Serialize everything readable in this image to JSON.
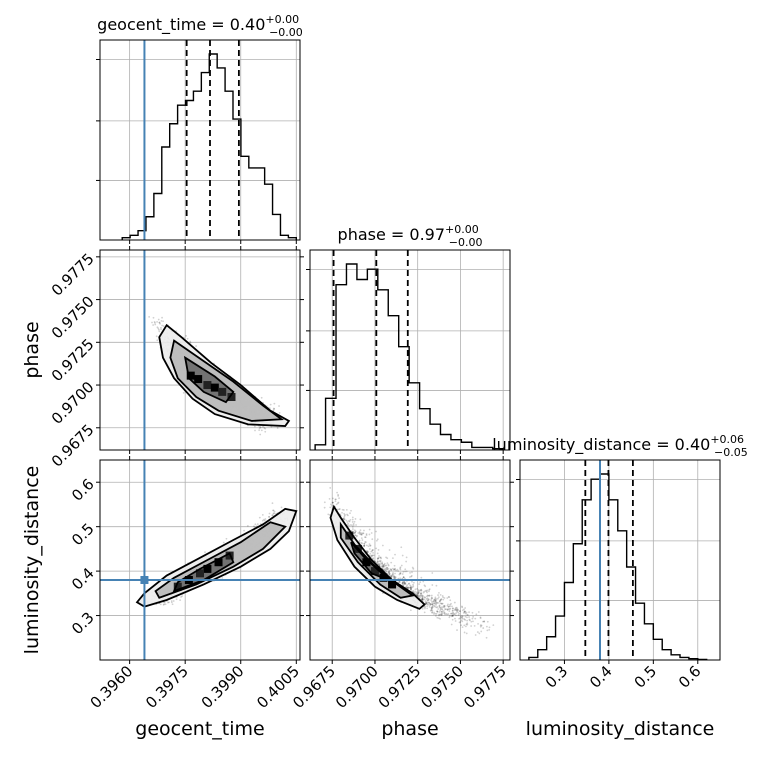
{
  "chart_data": {
    "type": "scatter",
    "subtype": "corner-plot",
    "truth_color": "#4682b4",
    "truth": {
      "geocent_time": 0.3964,
      "phase": null,
      "luminosity_distance": 0.38
    },
    "parameters": [
      {
        "name": "geocent_time",
        "label": "geocent_time",
        "title_name": "geocent_time",
        "title_value": "0.40",
        "title_plus": "+0.00",
        "title_minus": "−0.00",
        "range": [
          0.3952,
          0.4006
        ],
        "ticks": [
          0.396,
          0.3975,
          0.399,
          0.4005
        ],
        "tick_labels": [
          "0.3960",
          "0.3975",
          "0.3990",
          "0.4005"
        ],
        "quantiles": [
          0.39754,
          0.39817,
          0.39895
        ],
        "hist_edges_range": [
          0.3958,
          0.4005
        ],
        "hist_counts": [
          1,
          2,
          4,
          10,
          20,
          40,
          50,
          58,
          60,
          64,
          72,
          80,
          74,
          64,
          52,
          36,
          31,
          31,
          24,
          11,
          2,
          1
        ]
      },
      {
        "name": "phase",
        "label": "phase",
        "title_name": "phase",
        "title_value": "0.97",
        "title_plus": "+0.00",
        "title_minus": "−0.00",
        "range": [
          0.9662,
          0.9779
        ],
        "ticks": [
          0.9675,
          0.97,
          0.9725,
          0.975,
          0.9775
        ],
        "tick_labels": [
          "0.9675",
          "0.9700",
          "0.9725",
          "0.9750",
          "0.9775"
        ],
        "quantiles": [
          0.96758,
          0.97008,
          0.97192
        ],
        "hist_edges_range": [
          0.9665,
          0.9775
        ],
        "hist_counts": [
          2,
          20,
          64,
          72,
          66,
          70,
          62,
          52,
          40,
          26,
          16,
          10,
          6,
          4,
          3,
          1,
          1,
          0.5
        ]
      },
      {
        "name": "luminosity_distance",
        "label": "luminosity_distance",
        "title_name": "luminosity_distance",
        "title_value": "0.40",
        "title_plus": "+0.06",
        "title_minus": "−0.05",
        "range": [
          0.2,
          0.65
        ],
        "ticks": [
          0.3,
          0.4,
          0.5,
          0.6
        ],
        "tick_labels": [
          "0.3",
          "0.4",
          "0.5",
          "0.6"
        ],
        "quantiles": [
          0.347,
          0.399,
          0.454
        ],
        "hist_edges_range": [
          0.22,
          0.62
        ],
        "hist_counts": [
          1,
          4,
          9,
          17,
          30,
          45,
          62,
          70,
          72,
          62,
          50,
          36,
          22,
          14,
          8,
          4,
          2,
          1,
          0.5,
          0.2
        ]
      }
    ],
    "pairs": [
      {
        "x": "geocent_time",
        "y": "phase",
        "points": [
          [
            0.39785,
            0.97035
          ],
          [
            0.3981,
            0.97
          ],
          [
            0.3983,
            0.96985
          ],
          [
            0.3985,
            0.9696
          ],
          [
            0.39765,
            0.97055
          ],
          [
            0.39875,
            0.9693
          ],
          [
            0.39905,
            0.96875
          ],
          [
            0.39745,
            0.971
          ],
          [
            0.39725,
            0.9717
          ],
          [
            0.39935,
            0.9684
          ],
          [
            0.39955,
            0.96805
          ],
          [
            0.39985,
            0.9679
          ],
          [
            0.397,
            0.9725
          ],
          [
            0.39675,
            0.9737
          ],
          [
            0.3984,
            0.9701
          ],
          [
            0.39795,
            0.9699
          ],
          [
            0.3976,
            0.9702
          ],
          [
            0.3988,
            0.969
          ],
          [
            0.3999,
            0.9683
          ],
          [
            0.3996,
            0.96785
          ]
        ],
        "contours": [
          [
            [
              0.397,
              0.9735
            ],
            [
              0.3974,
              0.9728
            ],
            [
              0.3982,
              0.9713
            ],
            [
              0.399,
              0.97
            ],
            [
              0.3998,
              0.9685
            ],
            [
              0.4003,
              0.9679
            ],
            [
              0.4002,
              0.9676
            ],
            [
              0.3992,
              0.9677
            ],
            [
              0.3983,
              0.9683
            ],
            [
              0.3977,
              0.9692
            ],
            [
              0.3972,
              0.9704
            ],
            [
              0.3969,
              0.9716
            ],
            [
              0.3968,
              0.9728
            ]
          ],
          [
            [
              0.3972,
              0.9726
            ],
            [
              0.398,
              0.9714
            ],
            [
              0.3988,
              0.9702
            ],
            [
              0.3996,
              0.9688
            ],
            [
              0.4001,
              0.968
            ],
            [
              0.3993,
              0.9679
            ],
            [
              0.3984,
              0.9685
            ],
            [
              0.3978,
              0.9693
            ],
            [
              0.3973,
              0.9704
            ],
            [
              0.3971,
              0.9716
            ]
          ],
          [
            [
              0.3975,
              0.9716
            ],
            [
              0.3983,
              0.9705
            ],
            [
              0.3988,
              0.9696
            ],
            [
              0.3986,
              0.969
            ],
            [
              0.398,
              0.9696
            ],
            [
              0.3976,
              0.9704
            ]
          ]
        ]
      },
      {
        "x": "geocent_time",
        "y": "luminosity_distance",
        "points": [
          [
            0.3981,
            0.405
          ],
          [
            0.3979,
            0.395
          ],
          [
            0.3984,
            0.42
          ],
          [
            0.3987,
            0.435
          ],
          [
            0.3976,
            0.38
          ],
          [
            0.3973,
            0.365
          ],
          [
            0.399,
            0.445
          ],
          [
            0.3994,
            0.47
          ],
          [
            0.3998,
            0.505
          ],
          [
            0.397,
            0.35
          ],
          [
            0.398,
            0.41
          ],
          [
            0.3977,
            0.39
          ],
          [
            0.3967,
            0.335
          ],
          [
            0.4001,
            0.525
          ],
          [
            0.39825,
            0.4
          ],
          [
            0.39855,
            0.425
          ]
        ],
        "contours": [
          [
            [
              0.3964,
              0.32
            ],
            [
              0.397,
              0.335
            ],
            [
              0.398,
              0.37
            ],
            [
              0.399,
              0.41
            ],
            [
              0.3998,
              0.45
            ],
            [
              0.4003,
              0.49
            ],
            [
              0.4005,
              0.535
            ],
            [
              0.4002,
              0.54
            ],
            [
              0.3996,
              0.505
            ],
            [
              0.3988,
              0.47
            ],
            [
              0.3979,
              0.43
            ],
            [
              0.397,
              0.39
            ],
            [
              0.3964,
              0.35
            ],
            [
              0.3962,
              0.33
            ]
          ],
          [
            [
              0.3968,
              0.34
            ],
            [
              0.3978,
              0.37
            ],
            [
              0.3988,
              0.41
            ],
            [
              0.3996,
              0.45
            ],
            [
              0.4002,
              0.5
            ],
            [
              0.3998,
              0.51
            ],
            [
              0.399,
              0.465
            ],
            [
              0.3981,
              0.425
            ],
            [
              0.3972,
              0.385
            ],
            [
              0.3967,
              0.355
            ]
          ],
          [
            [
              0.3972,
              0.355
            ],
            [
              0.398,
              0.38
            ],
            [
              0.3988,
              0.42
            ],
            [
              0.3987,
              0.44
            ],
            [
              0.3979,
              0.405
            ],
            [
              0.3973,
              0.375
            ]
          ]
        ]
      },
      {
        "x": "phase",
        "y": "luminosity_distance",
        "points": [
          [
            0.9695,
            0.42
          ],
          [
            0.97,
            0.4
          ],
          [
            0.9705,
            0.385
          ],
          [
            0.969,
            0.45
          ],
          [
            0.971,
            0.37
          ],
          [
            0.9685,
            0.48
          ],
          [
            0.9715,
            0.36
          ],
          [
            0.9725,
            0.335
          ],
          [
            0.9735,
            0.32
          ],
          [
            0.9745,
            0.305
          ],
          [
            0.9755,
            0.29
          ],
          [
            0.9765,
            0.27
          ],
          [
            0.968,
            0.52
          ],
          [
            0.9675,
            0.56
          ],
          [
            0.9702,
            0.395
          ],
          [
            0.9698,
            0.41
          ]
        ],
        "contours": [
          [
            [
              0.9676,
              0.545
            ],
            [
              0.968,
              0.52
            ],
            [
              0.9688,
              0.475
            ],
            [
              0.9698,
              0.425
            ],
            [
              0.971,
              0.38
            ],
            [
              0.9722,
              0.35
            ],
            [
              0.9729,
              0.325
            ],
            [
              0.9726,
              0.315
            ],
            [
              0.9713,
              0.335
            ],
            [
              0.97,
              0.365
            ],
            [
              0.9688,
              0.41
            ],
            [
              0.9678,
              0.47
            ],
            [
              0.9674,
              0.52
            ]
          ],
          [
            [
              0.968,
              0.505
            ],
            [
              0.9688,
              0.46
            ],
            [
              0.9699,
              0.415
            ],
            [
              0.9711,
              0.375
            ],
            [
              0.9722,
              0.345
            ],
            [
              0.9715,
              0.34
            ],
            [
              0.9703,
              0.37
            ],
            [
              0.969,
              0.42
            ],
            [
              0.968,
              0.475
            ]
          ],
          [
            [
              0.9686,
              0.465
            ],
            [
              0.9694,
              0.43
            ],
            [
              0.9704,
              0.395
            ],
            [
              0.9708,
              0.38
            ],
            [
              0.9698,
              0.395
            ],
            [
              0.9688,
              0.44
            ]
          ]
        ]
      }
    ]
  }
}
